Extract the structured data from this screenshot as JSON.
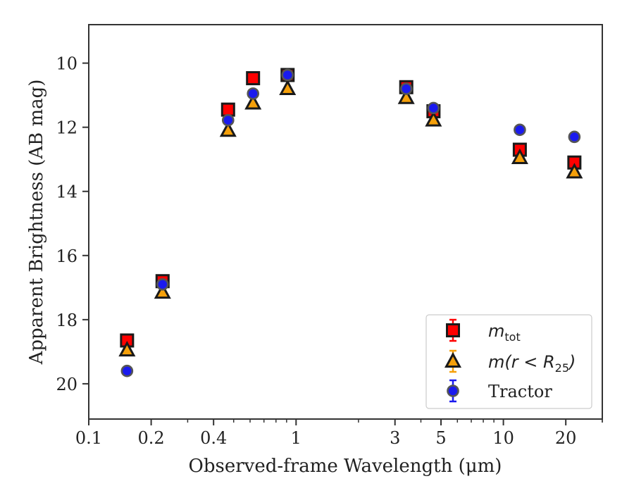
{
  "chart_data": {
    "type": "scatter",
    "title": "",
    "xlabel": "Observed-frame Wavelength (μm)",
    "ylabel": "Apparent Brightness (AB mag)",
    "x_scale": "log",
    "xlim": [
      0.1,
      30
    ],
    "ylim": [
      21.1,
      8.8
    ],
    "y_inverted": true,
    "x_ticks": [
      0.1,
      0.2,
      0.4,
      1,
      3,
      5,
      10,
      20
    ],
    "x_tick_labels": [
      "0.1",
      "0.2",
      "0.4",
      "1",
      "3",
      "5",
      "10",
      "20"
    ],
    "y_ticks": [
      10,
      12,
      14,
      16,
      18,
      20
    ],
    "y_tick_labels": [
      "10",
      "12",
      "14",
      "16",
      "18",
      "20"
    ],
    "grid": false,
    "legend": {
      "placement": "bottom-right",
      "entries": [
        {
          "label_main": "m",
          "label_sub": "tot",
          "marker": "square",
          "color": "#ff0000"
        },
        {
          "label_main": "m(r < R",
          "label_sub": "25",
          "label_end": ")",
          "marker": "triangle",
          "color": "#f5a00a"
        },
        {
          "label_main": "Tractor",
          "label_sub": "",
          "marker": "circle",
          "color": "#1a1aee"
        }
      ]
    },
    "series": [
      {
        "key": "mtot",
        "marker": "square",
        "color": "#ff0000",
        "points": [
          {
            "x": 0.153,
            "y": 18.65
          },
          {
            "x": 0.227,
            "y": 16.8
          },
          {
            "x": 0.47,
            "y": 11.45
          },
          {
            "x": 0.62,
            "y": 10.47
          },
          {
            "x": 0.91,
            "y": 10.37
          },
          {
            "x": 3.4,
            "y": 10.75
          },
          {
            "x": 4.6,
            "y": 11.5
          },
          {
            "x": 12.0,
            "y": 12.7
          },
          {
            "x": 22.0,
            "y": 13.1
          }
        ]
      },
      {
        "key": "mr25",
        "marker": "triangle",
        "color": "#f5a00a",
        "points": [
          {
            "x": 0.153,
            "y": 18.95
          },
          {
            "x": 0.227,
            "y": 17.15
          },
          {
            "x": 0.47,
            "y": 12.1
          },
          {
            "x": 0.62,
            "y": 11.25
          },
          {
            "x": 0.91,
            "y": 10.8
          },
          {
            "x": 3.4,
            "y": 11.08
          },
          {
            "x": 4.6,
            "y": 11.78
          },
          {
            "x": 12.0,
            "y": 12.95
          },
          {
            "x": 22.0,
            "y": 13.4
          }
        ]
      },
      {
        "key": "tractor",
        "marker": "circle",
        "color": "#1a1aee",
        "points": [
          {
            "x": 0.153,
            "y": 19.6
          },
          {
            "x": 0.227,
            "y": 16.9
          },
          {
            "x": 0.47,
            "y": 11.78
          },
          {
            "x": 0.62,
            "y": 10.95
          },
          {
            "x": 0.91,
            "y": 10.37
          },
          {
            "x": 3.4,
            "y": 10.8
          },
          {
            "x": 4.6,
            "y": 11.4
          },
          {
            "x": 12.0,
            "y": 12.08
          },
          {
            "x": 22.0,
            "y": 12.3
          }
        ]
      }
    ]
  }
}
